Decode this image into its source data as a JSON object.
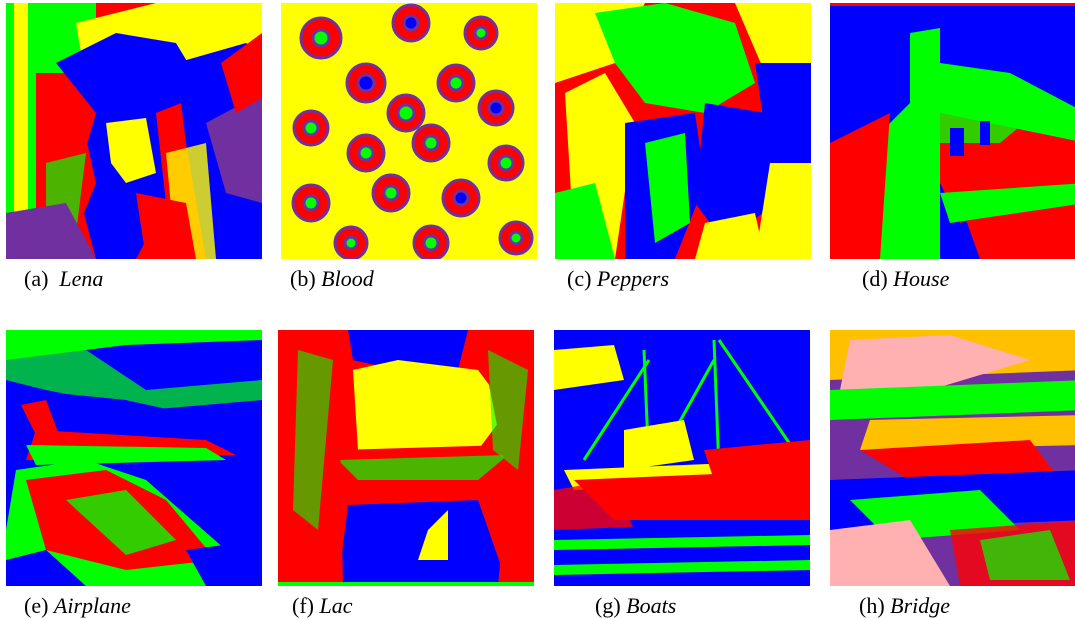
{
  "figure": {
    "panels": [
      {
        "label": "(a)",
        "name": "Lena"
      },
      {
        "label": "(b)",
        "name": "Blood"
      },
      {
        "label": "(c)",
        "name": "Peppers"
      },
      {
        "label": "(d)",
        "name": "House"
      },
      {
        "label": "(e)",
        "name": "Airplane"
      },
      {
        "label": "(f)",
        "name": "Lac"
      },
      {
        "label": "(g)",
        "name": "Boats"
      },
      {
        "label": "(h)",
        "name": "Bridge"
      }
    ],
    "palette": {
      "red": "#ff0000",
      "green": "#00ff00",
      "blue": "#0000ff",
      "yellow": "#ffff00",
      "purple": "#7030a0",
      "pink": "#ffb0b0",
      "orange": "#ffc000"
    }
  }
}
